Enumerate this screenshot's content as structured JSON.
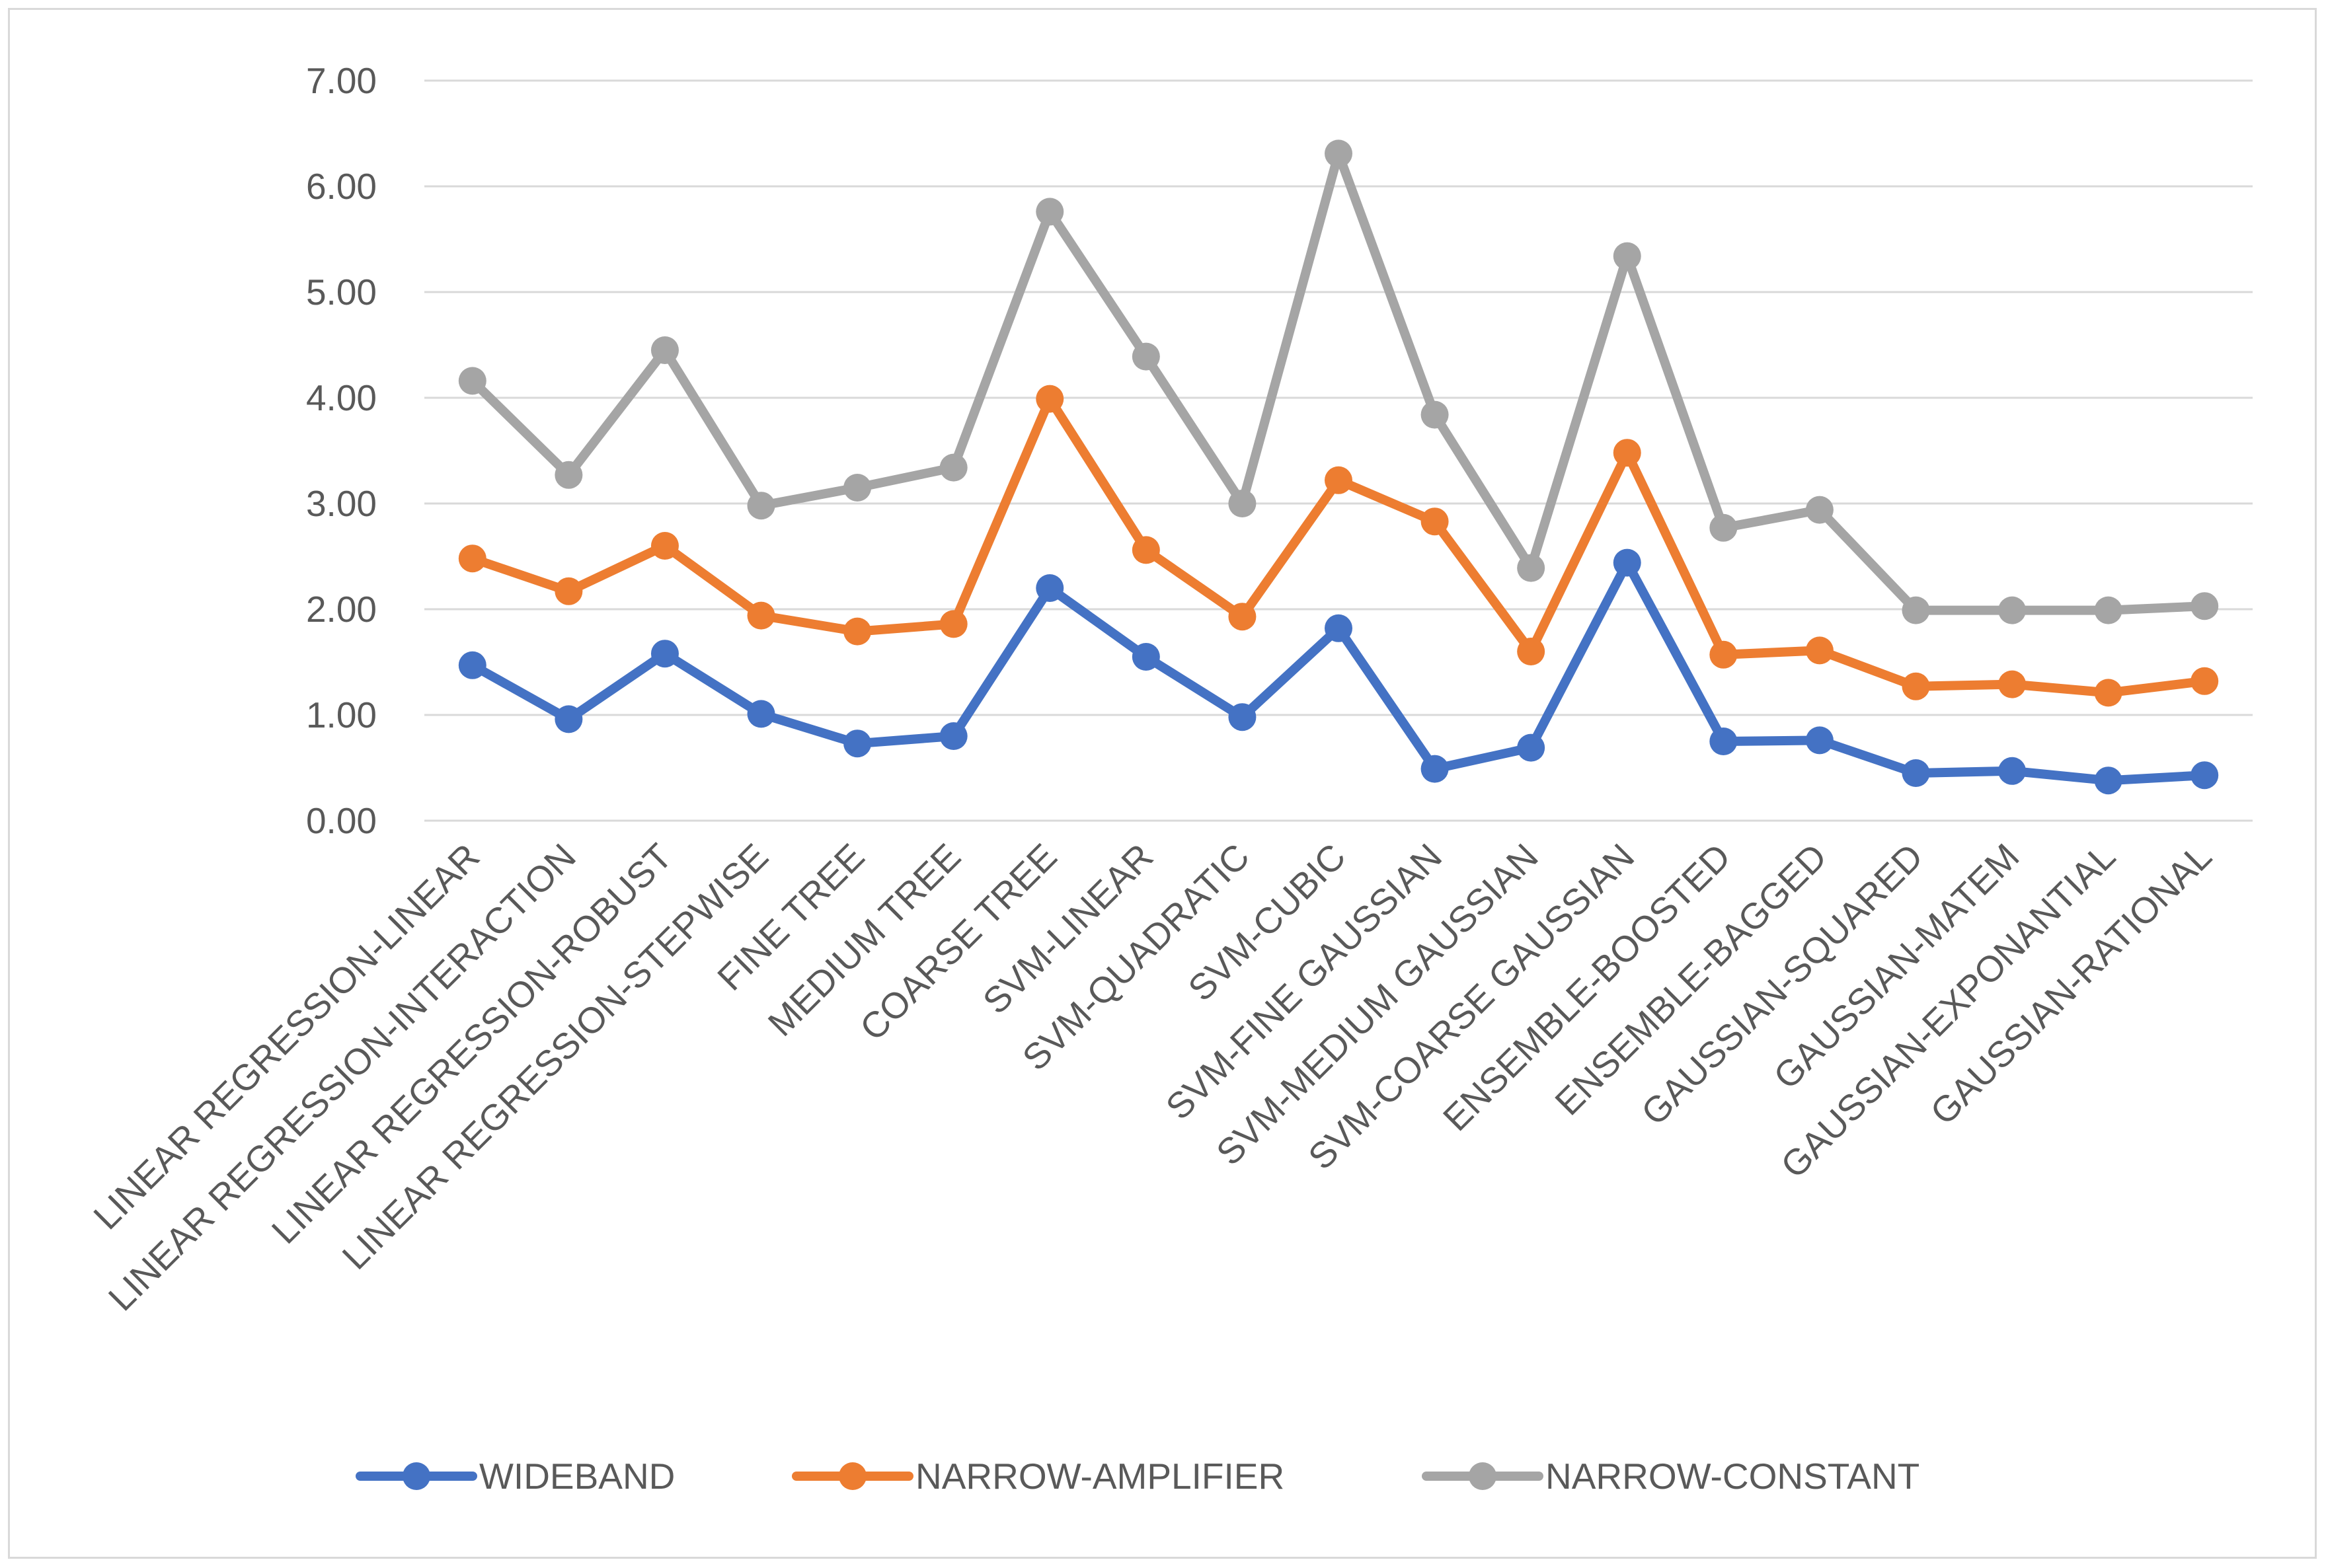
{
  "chart_data": {
    "type": "line",
    "title": "",
    "xlabel": "",
    "ylabel": "",
    "ylim": [
      0,
      7
    ],
    "ytick_step": 1,
    "ytick_labels": [
      "0.00",
      "1.00",
      "2.00",
      "3.00",
      "4.00",
      "5.00",
      "6.00",
      "7.00"
    ],
    "grid": true,
    "legend_position": "bottom",
    "categories": [
      "LINEAR REGRESSION-LINEAR",
      "LINEAR REGRESSION-INTERACTION",
      "LINEAR REGRESSION-ROBUST",
      "LINEAR REGRESSION-STEPWISE",
      "FINE TREE",
      "MEDIUM TREE",
      "COARSE TREE",
      "SVM-LINEAR",
      "SVM-QUADRATIC",
      "SVM-CUBIC",
      "SVM-FINE GAUSSIAN",
      "SVM-MEDIUM GAUSSIAN",
      "SVM-COARSE GAUSSIAN",
      "ENSEMBLE-BOOSTED",
      "ENSEMBLE-BAGGED",
      "GAUSSIAN-SQUARED",
      "GAUSSIAN-MATEM",
      "GAUSSIAN-EXPONANTIAL",
      "GAUSSIAN-RATIONAL"
    ],
    "series": [
      {
        "name": "WIDEBAND",
        "color": "#4472c4",
        "values": [
          1.47,
          0.96,
          1.58,
          1.01,
          0.73,
          0.8,
          2.2,
          1.55,
          0.98,
          1.82,
          0.49,
          0.69,
          2.44,
          0.75,
          0.76,
          0.45,
          0.47,
          0.38,
          0.43
        ]
      },
      {
        "name": "NARROW-AMPLIFIER",
        "color": "#ed7d31",
        "values": [
          2.48,
          2.17,
          2.6,
          1.94,
          1.79,
          1.86,
          3.99,
          2.56,
          1.93,
          3.22,
          2.83,
          1.6,
          3.48,
          1.57,
          1.61,
          1.27,
          1.29,
          1.21,
          1.32
        ]
      },
      {
        "name": "NARROW-CONSTANT",
        "color": "#a5a5a5",
        "values": [
          4.16,
          3.27,
          4.45,
          2.98,
          3.15,
          3.34,
          5.76,
          4.39,
          3.0,
          6.31,
          3.84,
          2.39,
          5.34,
          2.77,
          2.94,
          1.99,
          1.99,
          1.99,
          2.03
        ]
      }
    ]
  }
}
